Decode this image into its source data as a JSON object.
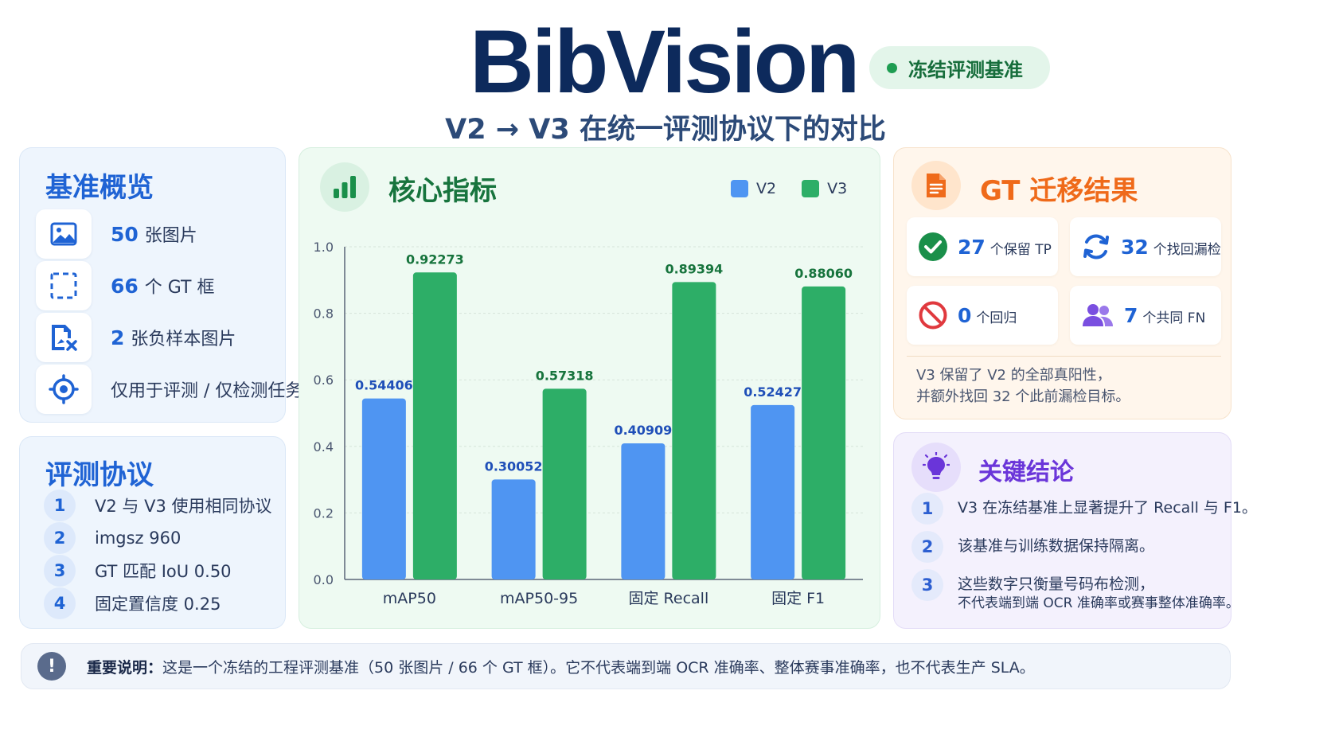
{
  "header": {
    "brand": "BibVision",
    "badge": "冻结评测基准",
    "subtitle": "V2 → V3 在统一评测协议下的对比"
  },
  "overview": {
    "title": "基准概览",
    "items": [
      {
        "icon": "image-icon",
        "num": "50",
        "text": "张图片"
      },
      {
        "icon": "bounding-box-icon",
        "num": "66",
        "text": "个 GT 框"
      },
      {
        "icon": "negative-image-icon",
        "num": "2",
        "text": "张负样本图片"
      },
      {
        "icon": "target-icon",
        "num": "",
        "text": "仅用于评测 / 仅检测任务"
      }
    ]
  },
  "protocol": {
    "title": "评测协议",
    "items": [
      {
        "n": "1",
        "text": "V2 与 V3 使用相同协议"
      },
      {
        "n": "2",
        "text": "imgsz 960"
      },
      {
        "n": "3",
        "text": "GT 匹配 IoU 0.50"
      },
      {
        "n": "4",
        "text": "固定置信度 0.25"
      }
    ]
  },
  "metrics": {
    "title": "核心指标",
    "legend": [
      "V2",
      "V3"
    ]
  },
  "chart_data": {
    "type": "bar",
    "categories": [
      "mAP50",
      "mAP50-95",
      "固定 Recall",
      "固定 F1"
    ],
    "series": [
      {
        "name": "V2",
        "values": [
          0.54406,
          0.30052,
          0.40909,
          0.52427
        ],
        "labels": [
          "0.54406",
          "0.30052",
          "0.40909",
          "0.52427"
        ],
        "color": "#4f95f2"
      },
      {
        "name": "V3",
        "values": [
          0.92273,
          0.57318,
          0.89394,
          0.8806
        ],
        "labels": [
          "0.92273",
          "0.57318",
          "0.89394",
          "0.88060"
        ],
        "color": "#2dae67"
      }
    ],
    "yticks": [
      "0.0",
      "0.2",
      "0.4",
      "0.6",
      "0.8",
      "1.0"
    ],
    "ylim": [
      0,
      1.0
    ],
    "grid": true,
    "legend_position": "top-right"
  },
  "gt": {
    "title": "GT 迁移结果",
    "tiles": [
      {
        "icon": "check-circle-icon",
        "num": "27",
        "text": "个保留 TP",
        "color": "#1a8f4a"
      },
      {
        "icon": "refresh-icon",
        "num": "32",
        "text": "个找回漏检",
        "color": "#1f63d4"
      },
      {
        "icon": "ban-icon",
        "num": "0",
        "text": "个回归",
        "color": "#1f63d4"
      },
      {
        "icon": "users-icon",
        "num": "7",
        "text": "个共同 FN",
        "color": "#1f63d4"
      }
    ],
    "note1": "V3 保留了 V2 的全部真阳性，",
    "note2": "并额外找回 32 个此前漏检目标。"
  },
  "conclusions": {
    "title": "关键结论",
    "items": [
      {
        "n": "1",
        "line1": "V3 在冻结基准上显著提升了 Recall 与 F1。",
        "line2": ""
      },
      {
        "n": "2",
        "line1": "该基准与训练数据保持隔离。",
        "line2": ""
      },
      {
        "n": "3",
        "line1": "这些数字只衡量号码布检测，",
        "line2": "不代表端到端 OCR 准确率或赛事整体准确率。"
      }
    ]
  },
  "note": {
    "label": "重要说明：",
    "text": "这是一个冻结的工程评测基准（50 张图片 / 66 个 GT 框）。它不代表端到端 OCR 准确率、整体赛事准确率，也不代表生产 SLA。"
  },
  "colors": {
    "navy": "#0d2a5c",
    "blue": "#1f63d4",
    "green": "#1a8f4a",
    "orange": "#ef6a1a",
    "purple": "#6a35d9"
  }
}
